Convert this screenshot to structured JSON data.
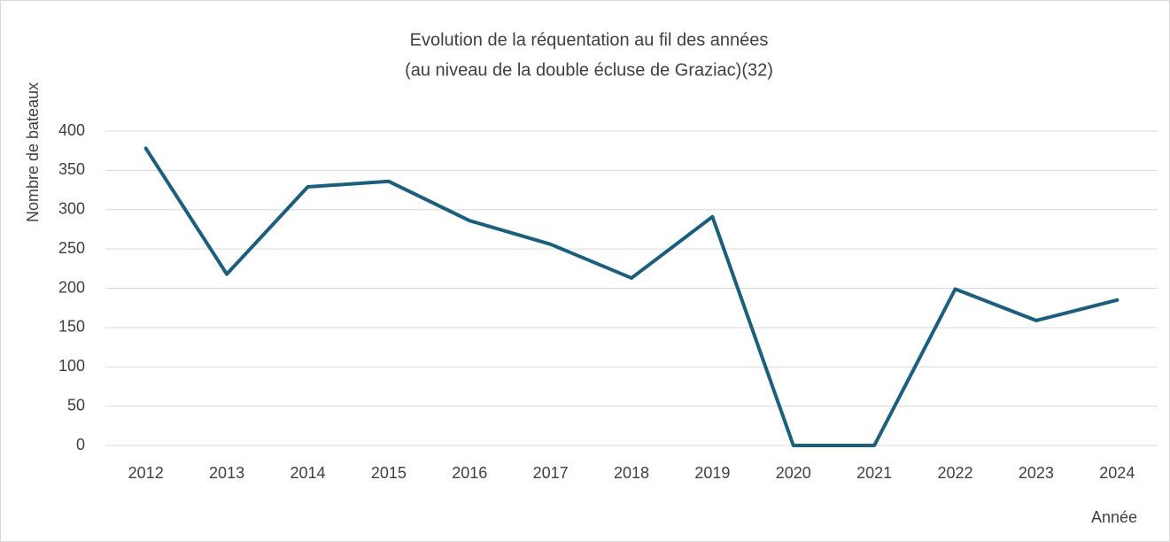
{
  "chart_data": {
    "type": "line",
    "title": "Evolution de la réquentation au fil des années",
    "subtitle": "(au niveau de la double écluse de Graziac)(32)",
    "x_label": "Année",
    "y_label": "Nombre de bateaux",
    "categories": [
      "2012",
      "2013",
      "2014",
      "2015",
      "2016",
      "2017",
      "2018",
      "2019",
      "2020",
      "2021",
      "2022",
      "2023",
      "2024"
    ],
    "series": [
      {
        "name": "Nombre de bateaux",
        "color": "#1b5e7e",
        "values": [
          378,
          218,
          329,
          336,
          286,
          256,
          213,
          291,
          0,
          0,
          199,
          159,
          185
        ]
      }
    ],
    "ylim": [
      0,
      400
    ],
    "yticks": [
      0,
      50,
      100,
      150,
      200,
      250,
      300,
      350,
      400
    ],
    "grid": true
  }
}
